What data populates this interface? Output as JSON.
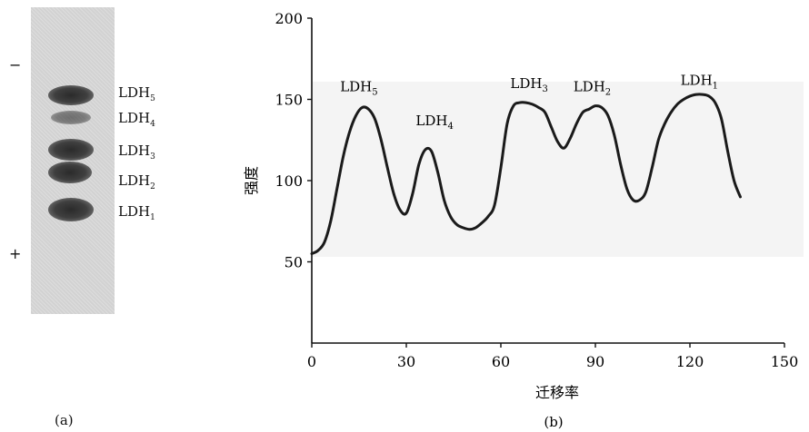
{
  "gel": {
    "minus": "−",
    "plus": "+",
    "caption": "(a)",
    "bands": [
      {
        "name": "LDH",
        "sub": "5"
      },
      {
        "name": "LDH",
        "sub": "4"
      },
      {
        "name": "LDH",
        "sub": "3"
      },
      {
        "name": "LDH",
        "sub": "2"
      },
      {
        "name": "LDH",
        "sub": "1"
      }
    ]
  },
  "chart_data": {
    "type": "line",
    "xlabel": "迁移率",
    "ylabel": "强度",
    "xlim": [
      0,
      150
    ],
    "ylim": [
      0,
      200
    ],
    "xticks": [
      0,
      30,
      60,
      90,
      120,
      150
    ],
    "yticks": [
      50,
      100,
      150,
      200
    ],
    "caption": "(b)",
    "series": [
      {
        "x": [
          0,
          2,
          4,
          6,
          8,
          10,
          12,
          14,
          16,
          18,
          20,
          22,
          24,
          26,
          28,
          30,
          32,
          34,
          36,
          38,
          40,
          42,
          44,
          46,
          48,
          50,
          52,
          54,
          56,
          58,
          60,
          62,
          64,
          66,
          68,
          70,
          72,
          74,
          76,
          78,
          80,
          82,
          84,
          86,
          88,
          90,
          92,
          94,
          96,
          98,
          100,
          102,
          104,
          106,
          108,
          110,
          112,
          114,
          116,
          118,
          120,
          122,
          124,
          126,
          128,
          130,
          132,
          134,
          136
        ],
        "y": [
          55,
          57,
          62,
          75,
          95,
          115,
          130,
          140,
          145,
          144,
          138,
          125,
          108,
          92,
          82,
          80,
          92,
          110,
          119,
          118,
          105,
          88,
          78,
          73,
          71,
          70,
          71,
          74,
          78,
          85,
          108,
          135,
          146,
          148,
          148,
          147,
          145,
          142,
          133,
          124,
          120,
          126,
          135,
          142,
          144,
          146,
          145,
          140,
          128,
          110,
          95,
          88,
          88,
          93,
          108,
          125,
          135,
          142,
          147,
          150,
          152,
          153,
          153,
          152,
          148,
          138,
          118,
          100,
          90
        ]
      }
    ],
    "annotations": [
      {
        "name": "LDH",
        "sub": "5",
        "x": 9,
        "y": 155
      },
      {
        "name": "LDH",
        "sub": "4",
        "x": 33,
        "y": 134
      },
      {
        "name": "LDH",
        "sub": "3",
        "x": 63,
        "y": 157
      },
      {
        "name": "LDH",
        "sub": "2",
        "x": 83,
        "y": 155
      },
      {
        "name": "LDH",
        "sub": "1",
        "x": 117,
        "y": 159
      }
    ]
  }
}
